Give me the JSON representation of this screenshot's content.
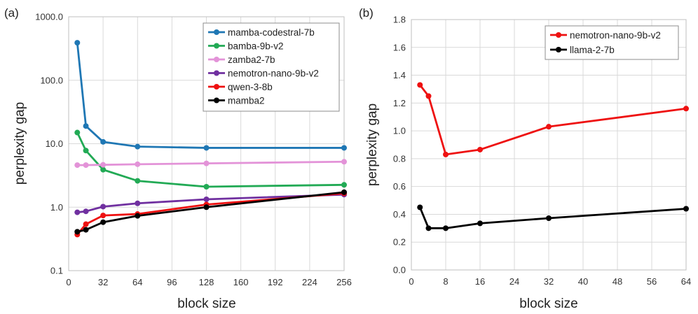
{
  "chart_data": [
    {
      "type": "line",
      "panel_label": "(a)",
      "xlabel": "block size",
      "ylabel": "perplexity gap",
      "yscale": "log",
      "xlim": [
        0,
        256
      ],
      "ylim": [
        0.1,
        1000
      ],
      "x_ticks": [
        0,
        32,
        64,
        96,
        128,
        160,
        192,
        224,
        256
      ],
      "y_ticks": [
        0.1,
        1,
        10,
        100,
        1000
      ],
      "y_tick_labels": [
        "0.1",
        "1.0",
        "10.0",
        "100.0",
        "1000.0"
      ],
      "grid": true,
      "legend_position": "top-right",
      "x": [
        8,
        16,
        32,
        64,
        128,
        256
      ],
      "series": [
        {
          "name": "mamba-codestral-7b",
          "color": "#1f77b4",
          "values": [
            390,
            19,
            10.7,
            9.0,
            8.6,
            8.6
          ]
        },
        {
          "name": "bamba-9b-v2",
          "color": "#22aa55",
          "values": [
            15,
            7.8,
            3.9,
            2.6,
            2.1,
            2.25
          ]
        },
        {
          "name": "zamba2-7b",
          "color": "#e393d8",
          "values": [
            4.6,
            4.6,
            4.65,
            4.75,
            4.9,
            5.2
          ]
        },
        {
          "name": "nemotron-nano-9b-v2",
          "color": "#7030a0",
          "values": [
            0.83,
            0.86,
            1.02,
            1.15,
            1.33,
            1.58
          ]
        },
        {
          "name": "qwen-3-8b",
          "color": "#ee1111",
          "values": [
            0.37,
            0.54,
            0.74,
            0.78,
            1.1,
            1.65
          ]
        },
        {
          "name": "mamba2",
          "color": "#000000",
          "values": [
            0.41,
            0.44,
            0.58,
            0.73,
            1.0,
            1.72
          ]
        }
      ]
    },
    {
      "type": "line",
      "panel_label": "(b)",
      "xlabel": "block size",
      "ylabel": "perplexity gap",
      "yscale": "linear",
      "xlim": [
        0,
        64
      ],
      "ylim": [
        0,
        1.8
      ],
      "x_ticks": [
        0,
        8,
        16,
        24,
        32,
        40,
        48,
        56,
        64
      ],
      "y_ticks": [
        0,
        0.2,
        0.4,
        0.6,
        0.8,
        1.0,
        1.2,
        1.4,
        1.6,
        1.8
      ],
      "y_tick_labels": [
        "0.0",
        "0.2",
        "0.4",
        "0.6",
        "0.8",
        "1.0",
        "1.2",
        "1.4",
        "1.6",
        "1.8"
      ],
      "grid": true,
      "legend_position": "top-right",
      "x": [
        2,
        4,
        8,
        16,
        32,
        64
      ],
      "series": [
        {
          "name": "nemotron-nano-9b-v2",
          "color": "#ee1111",
          "values": [
            1.33,
            1.25,
            0.83,
            0.865,
            1.03,
            1.16
          ]
        },
        {
          "name": "llama-2-7b",
          "color": "#000000",
          "values": [
            0.45,
            0.3,
            0.3,
            0.335,
            0.372,
            0.44
          ]
        }
      ]
    }
  ]
}
